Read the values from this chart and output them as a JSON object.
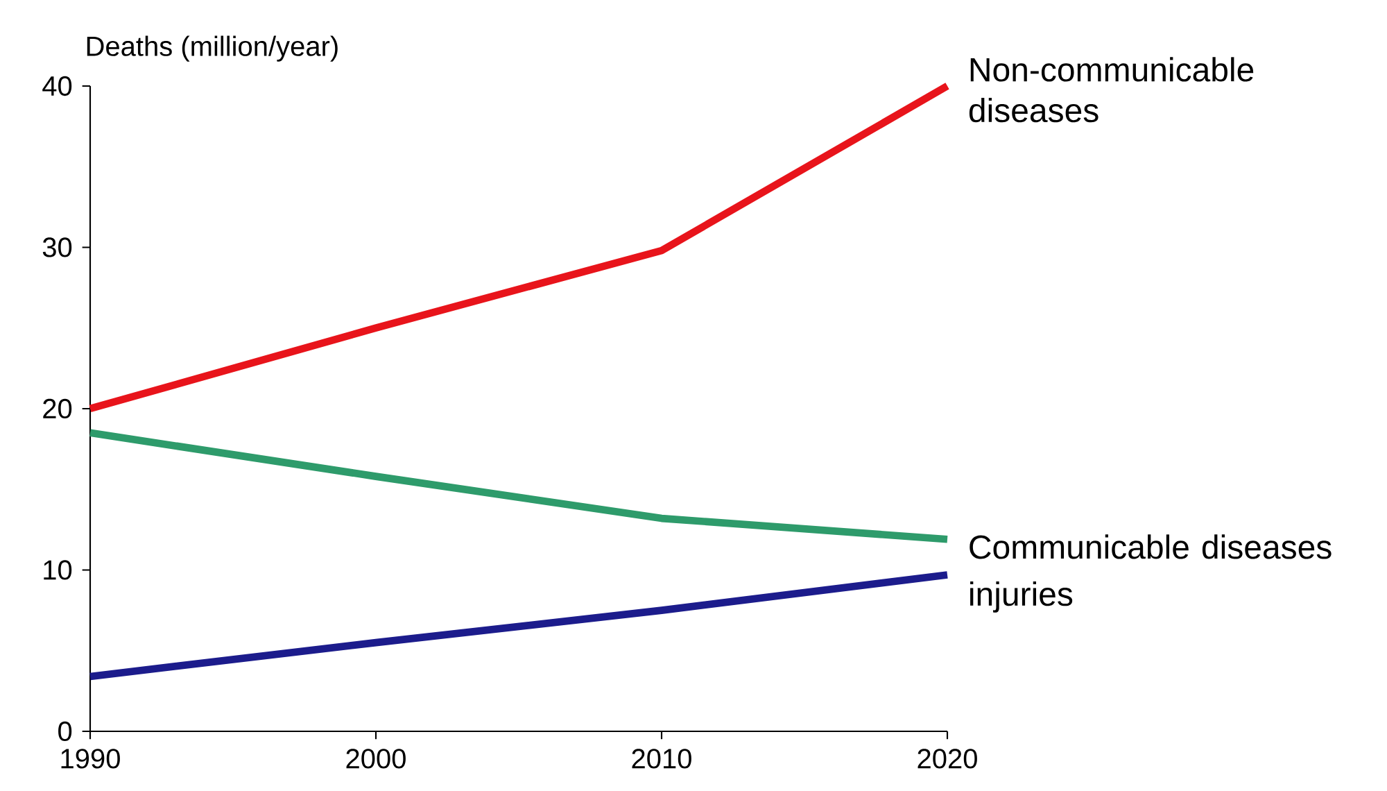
{
  "chart_data": {
    "type": "line",
    "ylabel": "Deaths (million/year)",
    "x": [
      1990,
      2000,
      2010,
      2020
    ],
    "series": [
      {
        "name": "Non-communicable diseases",
        "color": "#e8141b",
        "values": [
          20,
          25,
          29.8,
          40
        ]
      },
      {
        "name": "Communicable diseases",
        "color": "#2e9b6b",
        "values": [
          18.5,
          15.8,
          13.2,
          11.9
        ]
      },
      {
        "name": "injuries",
        "color": "#1c1c8c",
        "values": [
          3.4,
          5.5,
          7.5,
          9.7
        ]
      }
    ],
    "xlim": [
      1990,
      2020
    ],
    "xticks": [
      1990,
      2000,
      2010,
      2020
    ],
    "ylim": [
      0,
      40
    ],
    "yticks": [
      0,
      10,
      20,
      30,
      40
    ],
    "grid": false,
    "marker": "none",
    "line_style": "solid"
  }
}
